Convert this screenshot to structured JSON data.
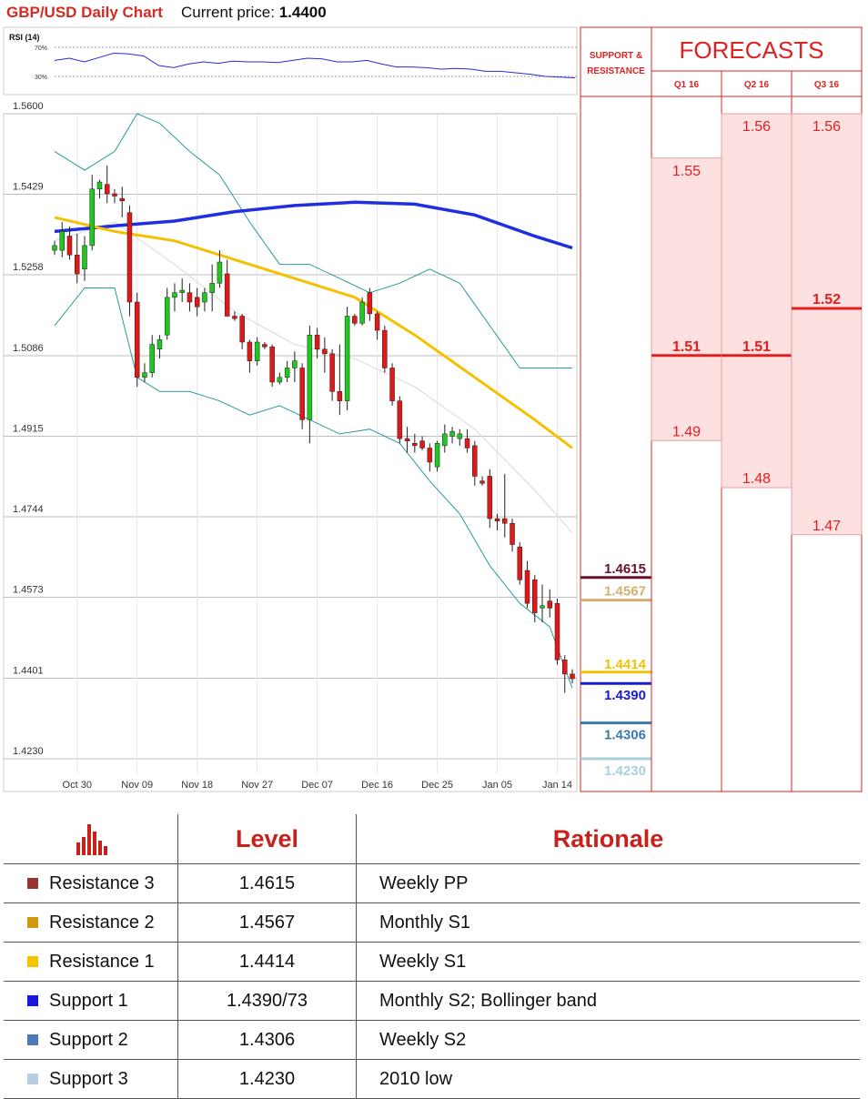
{
  "header": {
    "title": "GBP/USD Daily Chart",
    "price_label": "Current price:",
    "price_value": "1.4400"
  },
  "rsi": {
    "label": "RSI (14)",
    "levels": [
      "70%",
      "30%"
    ]
  },
  "chart_data": [
    {
      "type": "candlestick",
      "title": "GBP/USD Daily Chart",
      "y_tick_labels": [
        "1.5600",
        "1.5429",
        "1.5258",
        "1.5086",
        "1.4915",
        "1.4744",
        "1.4573",
        "1.4401",
        "1.4230"
      ],
      "y_ticks": [
        1.56,
        1.5429,
        1.5258,
        1.5086,
        1.4915,
        1.4744,
        1.4573,
        1.4401,
        1.423
      ],
      "ylim": [
        1.4225,
        1.5605
      ],
      "x_tick_labels": [
        "Oct 30",
        "Nov 09",
        "Nov 18",
        "Nov 27",
        "Dec 07",
        "Dec 16",
        "Dec 25",
        "Jan 05",
        "Jan 14"
      ],
      "x_tick_index": [
        3,
        11,
        19,
        27,
        35,
        43,
        51,
        59,
        67
      ],
      "candles": [
        {
          "o": 1.531,
          "h": 1.533,
          "l": 1.53,
          "c": 1.532
        },
        {
          "o": 1.531,
          "h": 1.537,
          "l": 1.5295,
          "c": 1.535
        },
        {
          "o": 1.534,
          "h": 1.536,
          "l": 1.529,
          "c": 1.53
        },
        {
          "o": 1.53,
          "h": 1.5345,
          "l": 1.524,
          "c": 1.526
        },
        {
          "o": 1.527,
          "h": 1.534,
          "l": 1.5245,
          "c": 1.532
        },
        {
          "o": 1.532,
          "h": 1.547,
          "l": 1.531,
          "c": 1.544
        },
        {
          "o": 1.544,
          "h": 1.546,
          "l": 1.542,
          "c": 1.5455
        },
        {
          "o": 1.545,
          "h": 1.549,
          "l": 1.541,
          "c": 1.543
        },
        {
          "o": 1.543,
          "h": 1.544,
          "l": 1.541,
          "c": 1.5425
        },
        {
          "o": 1.542,
          "h": 1.5445,
          "l": 1.538,
          "c": 1.5415
        },
        {
          "o": 1.539,
          "h": 1.5405,
          "l": 1.517,
          "c": 1.52
        },
        {
          "o": 1.52,
          "h": 1.522,
          "l": 1.502,
          "c": 1.504
        },
        {
          "o": 1.504,
          "h": 1.507,
          "l": 1.503,
          "c": 1.505
        },
        {
          "o": 1.505,
          "h": 1.513,
          "l": 1.504,
          "c": 1.511
        },
        {
          "o": 1.51,
          "h": 1.513,
          "l": 1.508,
          "c": 1.512
        },
        {
          "o": 1.513,
          "h": 1.523,
          "l": 1.512,
          "c": 1.521
        },
        {
          "o": 1.521,
          "h": 1.524,
          "l": 1.518,
          "c": 1.522
        },
        {
          "o": 1.522,
          "h": 1.525,
          "l": 1.52,
          "c": 1.5225
        },
        {
          "o": 1.522,
          "h": 1.524,
          "l": 1.518,
          "c": 1.52
        },
        {
          "o": 1.521,
          "h": 1.523,
          "l": 1.517,
          "c": 1.519
        },
        {
          "o": 1.52,
          "h": 1.523,
          "l": 1.518,
          "c": 1.522
        },
        {
          "o": 1.522,
          "h": 1.528,
          "l": 1.518,
          "c": 1.524
        },
        {
          "o": 1.524,
          "h": 1.531,
          "l": 1.523,
          "c": 1.5285
        },
        {
          "o": 1.526,
          "h": 1.529,
          "l": 1.517,
          "c": 1.517
        },
        {
          "o": 1.517,
          "h": 1.518,
          "l": 1.516,
          "c": 1.5165
        },
        {
          "o": 1.517,
          "h": 1.5175,
          "l": 1.51,
          "c": 1.5115
        },
        {
          "o": 1.5115,
          "h": 1.512,
          "l": 1.505,
          "c": 1.5075
        },
        {
          "o": 1.5075,
          "h": 1.5125,
          "l": 1.5065,
          "c": 1.5115
        },
        {
          "o": 1.511,
          "h": 1.5115,
          "l": 1.51,
          "c": 1.5105
        },
        {
          "o": 1.5105,
          "h": 1.511,
          "l": 1.502,
          "c": 1.503
        },
        {
          "o": 1.503,
          "h": 1.505,
          "l": 1.5025,
          "c": 1.504
        },
        {
          "o": 1.504,
          "h": 1.5075,
          "l": 1.503,
          "c": 1.506
        },
        {
          "o": 1.506,
          "h": 1.5095,
          "l": 1.503,
          "c": 1.5075
        },
        {
          "o": 1.506,
          "h": 1.507,
          "l": 1.493,
          "c": 1.495
        },
        {
          "o": 1.495,
          "h": 1.515,
          "l": 1.49,
          "c": 1.513
        },
        {
          "o": 1.513,
          "h": 1.5145,
          "l": 1.508,
          "c": 1.51
        },
        {
          "o": 1.51,
          "h": 1.5125,
          "l": 1.505,
          "c": 1.509
        },
        {
          "o": 1.509,
          "h": 1.51,
          "l": 1.499,
          "c": 1.501
        },
        {
          "o": 1.501,
          "h": 1.511,
          "l": 1.496,
          "c": 1.499
        },
        {
          "o": 1.499,
          "h": 1.519,
          "l": 1.497,
          "c": 1.517
        },
        {
          "o": 1.517,
          "h": 1.5175,
          "l": 1.515,
          "c": 1.5155
        },
        {
          "o": 1.5155,
          "h": 1.521,
          "l": 1.515,
          "c": 1.52
        },
        {
          "o": 1.522,
          "h": 1.523,
          "l": 1.516,
          "c": 1.5175
        },
        {
          "o": 1.5175,
          "h": 1.518,
          "l": 1.512,
          "c": 1.514
        },
        {
          "o": 1.514,
          "h": 1.515,
          "l": 1.505,
          "c": 1.506
        },
        {
          "o": 1.506,
          "h": 1.507,
          "l": 1.498,
          "c": 1.499
        },
        {
          "o": 1.499,
          "h": 1.5,
          "l": 1.49,
          "c": 1.491
        },
        {
          "o": 1.491,
          "h": 1.4935,
          "l": 1.488,
          "c": 1.4905
        },
        {
          "o": 1.49,
          "h": 1.492,
          "l": 1.488,
          "c": 1.4895
        },
        {
          "o": 1.4905,
          "h": 1.4915,
          "l": 1.4885,
          "c": 1.489
        },
        {
          "o": 1.489,
          "h": 1.49,
          "l": 1.484,
          "c": 1.486
        },
        {
          "o": 1.485,
          "h": 1.4905,
          "l": 1.484,
          "c": 1.49
        },
        {
          "o": 1.4895,
          "h": 1.494,
          "l": 1.488,
          "c": 1.492
        },
        {
          "o": 1.4915,
          "h": 1.4935,
          "l": 1.49,
          "c": 1.4925
        },
        {
          "o": 1.491,
          "h": 1.493,
          "l": 1.4895,
          "c": 1.492
        },
        {
          "o": 1.491,
          "h": 1.493,
          "l": 1.488,
          "c": 1.489
        },
        {
          "o": 1.4895,
          "h": 1.4905,
          "l": 1.481,
          "c": 1.483
        },
        {
          "o": 1.482,
          "h": 1.483,
          "l": 1.481,
          "c": 1.4815
        },
        {
          "o": 1.483,
          "h": 1.4845,
          "l": 1.472,
          "c": 1.474
        },
        {
          "o": 1.474,
          "h": 1.475,
          "l": 1.4715,
          "c": 1.4735
        },
        {
          "o": 1.474,
          "h": 1.4835,
          "l": 1.47,
          "c": 1.473
        },
        {
          "o": 1.473,
          "h": 1.474,
          "l": 1.467,
          "c": 1.4685
        },
        {
          "o": 1.468,
          "h": 1.469,
          "l": 1.46,
          "c": 1.461
        },
        {
          "o": 1.463,
          "h": 1.465,
          "l": 1.455,
          "c": 1.456
        },
        {
          "o": 1.461,
          "h": 1.462,
          "l": 1.452,
          "c": 1.454
        },
        {
          "o": 1.455,
          "h": 1.46,
          "l": 1.452,
          "c": 1.4555
        },
        {
          "o": 1.4565,
          "h": 1.459,
          "l": 1.453,
          "c": 1.455
        },
        {
          "o": 1.456,
          "h": 1.457,
          "l": 1.443,
          "c": 1.444
        },
        {
          "o": 1.444,
          "h": 1.445,
          "l": 1.437,
          "c": 1.441
        },
        {
          "o": 1.441,
          "h": 1.442,
          "l": 1.439,
          "c": 1.44
        }
      ],
      "ma_blue": [
        [
          0,
          1.535
        ],
        [
          8,
          1.5362
        ],
        [
          16,
          1.5372
        ],
        [
          24,
          1.5392
        ],
        [
          32,
          1.5405
        ],
        [
          40,
          1.5412
        ],
        [
          48,
          1.5408
        ],
        [
          56,
          1.5385
        ],
        [
          64,
          1.534
        ],
        [
          69,
          1.5315
        ]
      ],
      "ma_yellow": [
        [
          0,
          1.538
        ],
        [
          8,
          1.535
        ],
        [
          16,
          1.533
        ],
        [
          24,
          1.529
        ],
        [
          32,
          1.525
        ],
        [
          40,
          1.521
        ],
        [
          48,
          1.513
        ],
        [
          56,
          1.504
        ],
        [
          64,
          1.495
        ],
        [
          69,
          1.489
        ]
      ],
      "bb_upper": [
        [
          0,
          1.552
        ],
        [
          4,
          1.548
        ],
        [
          8,
          1.552
        ],
        [
          11,
          1.56
        ],
        [
          14,
          1.558
        ],
        [
          18,
          1.552
        ],
        [
          22,
          1.547
        ],
        [
          26,
          1.537
        ],
        [
          30,
          1.528
        ],
        [
          34,
          1.528
        ],
        [
          38,
          1.525
        ],
        [
          42,
          1.522
        ],
        [
          46,
          1.524
        ],
        [
          50,
          1.527
        ],
        [
          54,
          1.524
        ],
        [
          58,
          1.515
        ],
        [
          62,
          1.506
        ],
        [
          66,
          1.506
        ],
        [
          69,
          1.506
        ]
      ],
      "bb_lower": [
        [
          0,
          1.515
        ],
        [
          4,
          1.523
        ],
        [
          8,
          1.523
        ],
        [
          11,
          1.504
        ],
        [
          14,
          1.501
        ],
        [
          18,
          1.501
        ],
        [
          22,
          1.499
        ],
        [
          26,
          1.496
        ],
        [
          30,
          1.498
        ],
        [
          34,
          1.495
        ],
        [
          38,
          1.492
        ],
        [
          42,
          1.493
        ],
        [
          46,
          1.49
        ],
        [
          50,
          1.482
        ],
        [
          54,
          1.475
        ],
        [
          58,
          1.464
        ],
        [
          62,
          1.456
        ],
        [
          66,
          1.451
        ],
        [
          69,
          1.438
        ]
      ],
      "bb_middle": [
        [
          0,
          1.533
        ],
        [
          8,
          1.537
        ],
        [
          16,
          1.528
        ],
        [
          24,
          1.518
        ],
        [
          32,
          1.511
        ],
        [
          40,
          1.508
        ],
        [
          48,
          1.502
        ],
        [
          56,
          1.493
        ],
        [
          64,
          1.48
        ],
        [
          69,
          1.471
        ]
      ]
    },
    {
      "type": "line",
      "title": "RSI (14)",
      "ylim": [
        0,
        100
      ],
      "values": [
        52,
        55,
        50,
        56,
        62,
        61,
        58,
        45,
        42,
        47,
        50,
        48,
        51,
        50,
        50,
        49,
        52,
        55,
        54,
        50,
        50,
        52,
        47,
        43,
        43,
        42,
        40,
        41,
        40,
        37,
        37,
        35,
        33,
        30,
        29,
        28
      ]
    }
  ],
  "support_resistance": {
    "header": [
      "SUPPORT &",
      "RESISTANCE"
    ],
    "levels": [
      {
        "value": 1.4615,
        "label": "1.4615",
        "color": "#6b1030"
      },
      {
        "value": 1.4567,
        "label": "1.4567",
        "color": "#d4b070"
      },
      {
        "value": 1.4414,
        "label": "1.4414",
        "color": "#f2c200"
      },
      {
        "value": 1.439,
        "label": "1.4390",
        "color": "#1a1ad0"
      },
      {
        "value": 1.4306,
        "label": "1.4306",
        "color": "#3a7ab0"
      },
      {
        "value": 1.423,
        "label": "1.4230",
        "color": "#a8d0d8"
      }
    ]
  },
  "forecasts": {
    "title": "FORECASTS",
    "columns": [
      {
        "label": "Q1 16",
        "high": 1.55,
        "high_label": "1.55",
        "mid": 1.51,
        "mid_label": "1.51",
        "low": 1.49,
        "low_label": "1.49"
      },
      {
        "label": "Q2 16",
        "high": 1.56,
        "high_label": "1.56",
        "mid": 1.51,
        "mid_label": "1.51",
        "low": 1.48,
        "low_label": "1.48"
      },
      {
        "label": "Q3 16",
        "high": 1.56,
        "high_label": "1.56",
        "mid": 1.52,
        "mid_label": "1.52",
        "low": 1.47,
        "low_label": "1.47"
      }
    ]
  },
  "levels_table": {
    "headers": [
      "Level",
      "Rationale"
    ],
    "rows": [
      {
        "name": "Resistance 3",
        "level": "1.4615",
        "rationale": "Weekly PP",
        "color": "#9a3434"
      },
      {
        "name": "Resistance 2",
        "level": "1.4567",
        "rationale": "Monthly S1",
        "color": "#d09a10"
      },
      {
        "name": "Resistance 1",
        "level": "1.4414",
        "rationale": "Weekly S1",
        "color": "#f5c400"
      },
      {
        "name": "Support 1",
        "level": "1.4390/73",
        "rationale": "Monthly S2; Bollinger band",
        "color": "#1a1ad8"
      },
      {
        "name": "Support 2",
        "level": "1.4306",
        "rationale": "Weekly S2",
        "color": "#4a7ab8"
      },
      {
        "name": "Support 3",
        "level": "1.4230",
        "rationale": "2010 low",
        "color": "#b8cce4"
      }
    ]
  },
  "colors": {
    "bull": "#1ec81e",
    "bear": "#e01818",
    "ma_blue": "#1f2fe0",
    "ma_yellow": "#f5c000",
    "bollinger": "#2a9a9a",
    "forecast_red": "#e01818",
    "forecast_fill": "#fde0e0"
  }
}
